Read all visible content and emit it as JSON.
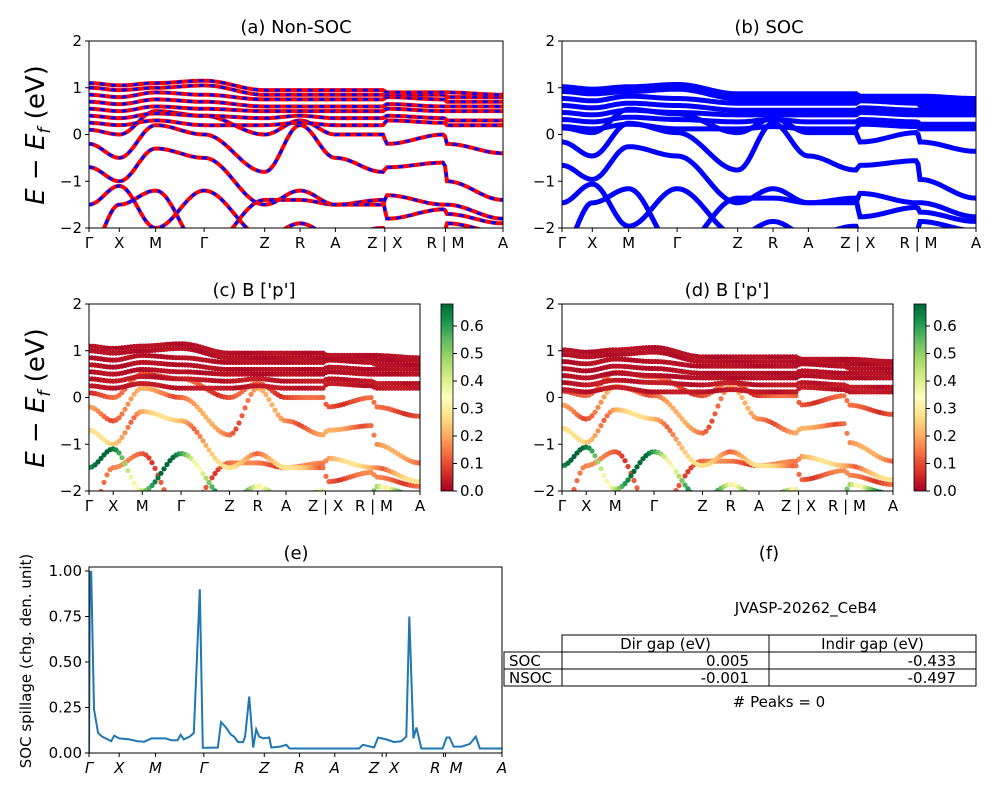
{
  "chart_data": [
    {
      "type": "line",
      "title": "(a) Non-SOC",
      "ylabel": {
        "italic_e": "E",
        "minus": " − ",
        "italic_e2": "E",
        "sub": "f",
        "unit": " (eV)"
      },
      "ylim": [
        -2,
        2
      ],
      "yticks": [
        "2",
        "1",
        "0",
        "−1",
        "−2"
      ],
      "xticks": [
        "Γ",
        "X",
        "M",
        "Γ",
        "Z",
        "R",
        "A",
        "Z | X",
        "R | M",
        "A"
      ],
      "colors": {
        "line": "#ff0000",
        "dash": "#0000ff"
      }
    },
    {
      "type": "line",
      "title": "(b) SOC",
      "ylim": [
        -2,
        2
      ],
      "yticks": [
        "2",
        "1",
        "0",
        "−1",
        "−2"
      ],
      "xticks": [
        "Γ",
        "X",
        "M",
        "Γ",
        "Z",
        "R",
        "A",
        "Z | X",
        "R | M",
        "A"
      ],
      "colors": {
        "line": "#0000ff"
      }
    },
    {
      "type": "scatter",
      "title": "(c)  B ['p']",
      "ylim": [
        -2,
        2
      ],
      "yticks": [
        "2",
        "1",
        "0",
        "−1",
        "−2"
      ],
      "xticks": [
        "Γ",
        "X",
        "M",
        "Γ",
        "Z",
        "R",
        "A",
        "Z | X",
        "R | M",
        "A"
      ],
      "colorbar": {
        "range": [
          0,
          0.68
        ],
        "ticks": [
          "0.0",
          "0.1",
          "0.2",
          "0.3",
          "0.4",
          "0.5",
          "0.6"
        ],
        "colormap": "RdYlGn"
      }
    },
    {
      "type": "scatter",
      "title": "(d) B ['p']",
      "ylim": [
        -2,
        2
      ],
      "yticks": [
        "2",
        "1",
        "0",
        "−1",
        "−2"
      ],
      "xticks": [
        "Γ",
        "X",
        "M",
        "Γ",
        "Z",
        "R",
        "A",
        "Z | X",
        "R | M",
        "A"
      ],
      "colorbar": {
        "range": [
          0,
          0.68
        ],
        "ticks": [
          "0.0",
          "0.1",
          "0.2",
          "0.3",
          "0.4",
          "0.5",
          "0.6"
        ],
        "colormap": "RdYlGn"
      }
    },
    {
      "type": "line",
      "title": "(e)",
      "ylabel": "SOC spillage (chg. den. unit)",
      "ylim": [
        0,
        1.0
      ],
      "yticks": [
        "1.00",
        "0.75",
        "0.50",
        "0.25",
        "0.00"
      ],
      "xticks": [
        "Γ",
        "X",
        "M",
        "Γ",
        "Z",
        "R",
        "A",
        "Z",
        "X",
        "R",
        "M",
        "A"
      ],
      "color": "#1f77b4",
      "kpath_ticks": [
        0,
        30,
        66,
        114,
        174,
        209,
        244,
        291,
        295,
        352,
        354,
        410
      ],
      "points": [
        [
          0,
          0
        ],
        [
          1,
          1.05
        ],
        [
          2,
          1.05
        ],
        [
          5,
          0.24
        ],
        [
          9,
          0.11
        ],
        [
          13,
          0.09
        ],
        [
          22,
          0.065
        ],
        [
          25,
          0.095
        ],
        [
          30,
          0.08
        ],
        [
          40,
          0.075
        ],
        [
          48,
          0.065
        ],
        [
          55,
          0.062
        ],
        [
          62,
          0.08
        ],
        [
          76,
          0.08
        ],
        [
          82,
          0.07
        ],
        [
          88,
          0.07
        ],
        [
          91,
          0.1
        ],
        [
          94,
          0.075
        ],
        [
          100,
          0.09
        ],
        [
          104,
          0.11
        ],
        [
          110,
          0.9
        ],
        [
          113,
          0.028
        ],
        [
          128,
          0.03
        ],
        [
          131,
          0.17
        ],
        [
          136,
          0.14
        ],
        [
          141,
          0.1
        ],
        [
          144,
          0.09
        ],
        [
          148,
          0.06
        ],
        [
          153,
          0.06
        ],
        [
          155,
          0.09
        ],
        [
          159,
          0.31
        ],
        [
          163,
          0.03
        ],
        [
          166,
          0.13
        ],
        [
          169,
          0.09
        ],
        [
          173,
          0.08
        ],
        [
          179,
          0.085
        ],
        [
          181,
          0.03
        ],
        [
          190,
          0.035
        ],
        [
          196,
          0.045
        ],
        [
          199,
          0.025
        ],
        [
          268,
          0.025
        ],
        [
          272,
          0.045
        ],
        [
          283,
          0.03
        ],
        [
          287,
          0.085
        ],
        [
          295,
          0.075
        ],
        [
          303,
          0.06
        ],
        [
          310,
          0.065
        ],
        [
          315,
          0.09
        ],
        [
          318,
          0.75
        ],
        [
          322,
          0.08
        ],
        [
          325,
          0.14
        ],
        [
          330,
          0.025
        ],
        [
          351,
          0.025
        ],
        [
          355,
          0.085
        ],
        [
          358,
          0.085
        ],
        [
          362,
          0.035
        ],
        [
          370,
          0.035
        ],
        [
          378,
          0.05
        ],
        [
          384,
          0.09
        ],
        [
          388,
          0.025
        ],
        [
          410,
          0.025
        ]
      ]
    },
    {
      "type": "table",
      "title": "(f)",
      "subtitle": "JVASP-20262_CeB4",
      "columns": [
        "",
        "Dir gap (eV)",
        "Indir gap (eV)"
      ],
      "rows": [
        [
          "SOC",
          "0.005",
          "-0.433"
        ],
        [
          "NSOC",
          "-0.001",
          "-0.497"
        ]
      ],
      "footer": "# Peaks = 0"
    }
  ],
  "bands": {
    "kpoints": [
      "Γ",
      "X",
      "M",
      "Γ",
      "Z",
      "R",
      "A",
      "Z",
      "X",
      "R",
      "M",
      "A"
    ],
    "energies": [
      {
        "e": [
          -2.5,
          -1.5,
          -1.2,
          -2.5,
          -1.4,
          -1.4,
          -1.5,
          -1.4,
          -1.8,
          -1.6,
          -1.7,
          -1.9
        ],
        "w": 0.12
      },
      {
        "e": [
          -0.7,
          -1.0,
          -0.3,
          -0.5,
          -1.5,
          -1.2,
          -1.5,
          -1.5,
          -1.3,
          -1.5,
          -1.5,
          -1.8
        ],
        "w": 0.2
      },
      {
        "e": [
          -0.2,
          -0.5,
          0.2,
          0.0,
          -0.8,
          0.2,
          -0.5,
          -0.8,
          -0.7,
          -0.6,
          -1.0,
          -1.4
        ],
        "w": 0.15
      },
      {
        "e": [
          0.1,
          0.0,
          0.5,
          0.4,
          0.0,
          0.3,
          0.0,
          0.0,
          -0.2,
          0.0,
          -0.2,
          -0.4
        ],
        "w": 0.1
      },
      {
        "e": [
          -1.5,
          -1.1,
          -2.0,
          -1.2,
          -2.2,
          -1.9,
          -2.2,
          -2.0,
          -2.2,
          -2.1,
          -1.9,
          -2.1
        ],
        "w": 0.5
      },
      {
        "e": [
          0.25,
          0.2,
          0.3,
          0.2,
          0.2,
          0.25,
          0.2,
          0.2,
          0.3,
          0.25,
          0.2,
          0.2
        ],
        "w": 0.03
      },
      {
        "e": [
          0.4,
          0.35,
          0.45,
          0.4,
          0.35,
          0.4,
          0.35,
          0.35,
          0.4,
          0.35,
          0.3,
          0.3
        ],
        "w": 0.03
      },
      {
        "e": [
          0.55,
          0.5,
          0.6,
          0.55,
          0.5,
          0.5,
          0.5,
          0.5,
          0.55,
          0.5,
          0.5,
          0.5
        ],
        "w": 0.02
      },
      {
        "e": [
          0.7,
          0.65,
          0.75,
          0.7,
          0.6,
          0.6,
          0.6,
          0.6,
          0.65,
          0.6,
          0.6,
          0.6
        ],
        "w": 0.02
      },
      {
        "e": [
          0.85,
          0.8,
          0.9,
          0.85,
          0.75,
          0.75,
          0.75,
          0.75,
          0.8,
          0.75,
          0.7,
          0.7
        ],
        "w": 0.02
      },
      {
        "e": [
          1.0,
          0.95,
          1.0,
          1.05,
          0.85,
          0.85,
          0.85,
          0.85,
          0.85,
          0.85,
          0.8,
          0.8
        ],
        "w": 0.02
      },
      {
        "e": [
          1.1,
          1.05,
          1.1,
          1.15,
          0.95,
          0.95,
          0.95,
          0.95,
          0.9,
          0.9,
          0.9,
          0.85
        ],
        "w": 0.02
      }
    ]
  }
}
